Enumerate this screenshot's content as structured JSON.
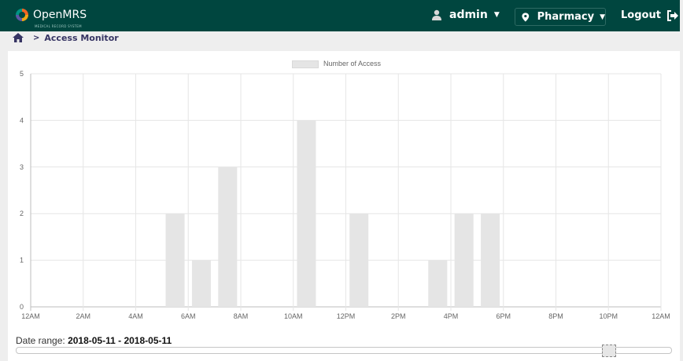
{
  "app": {
    "name": "OpenMRS",
    "tagline": "MEDICAL RECORD SYSTEM"
  },
  "header": {
    "user_label": "admin",
    "location_label": "Pharmacy",
    "logout_label": "Logout"
  },
  "breadcrumb": {
    "current": "Access Monitor"
  },
  "date_range": {
    "label": "Date range:",
    "value": "2018-05-11 - 2018-05-11"
  },
  "chart_data": {
    "type": "bar",
    "title": "",
    "legend": [
      "Number of Access"
    ],
    "legend_position": "top",
    "xlabel": "",
    "ylabel": "",
    "ylim": [
      0,
      5
    ],
    "yticks": [
      "0",
      "1",
      "2",
      "3",
      "4",
      "5"
    ],
    "xticks": [
      "12AM",
      "2AM",
      "4AM",
      "6AM",
      "8AM",
      "10AM",
      "12PM",
      "2PM",
      "4PM",
      "6PM",
      "8PM",
      "10PM",
      "12AM"
    ],
    "categories": [
      "12AM",
      "1AM",
      "2AM",
      "3AM",
      "4AM",
      "5AM",
      "6AM",
      "7AM",
      "8AM",
      "9AM",
      "10AM",
      "11AM",
      "12PM",
      "1PM",
      "2PM",
      "3PM",
      "4PM",
      "5PM",
      "6PM",
      "7PM",
      "8PM",
      "9PM",
      "10PM",
      "11PM"
    ],
    "series": [
      {
        "name": "Number of Access",
        "values": [
          0,
          0,
          0,
          0,
          0,
          2,
          1,
          3,
          0,
          0,
          4,
          0,
          2,
          0,
          0,
          1,
          2,
          2,
          0,
          0,
          0,
          0,
          0,
          0
        ]
      }
    ],
    "grid": true,
    "bar_color": "#e5e5e5"
  }
}
